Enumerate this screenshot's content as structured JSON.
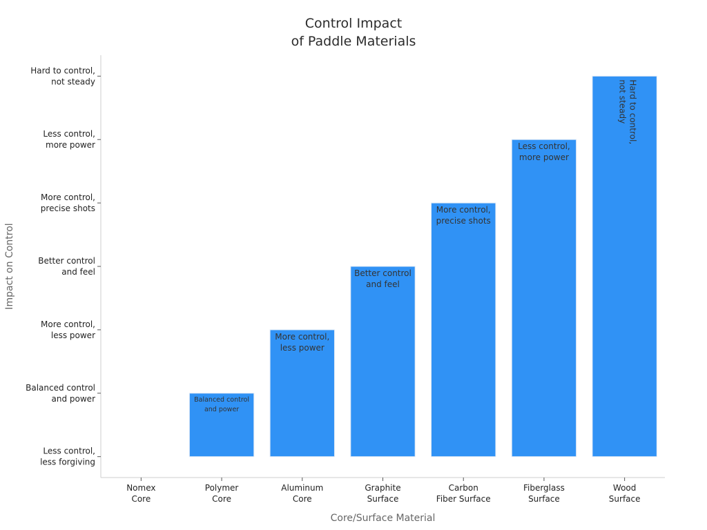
{
  "chart_data": {
    "type": "bar",
    "title": [
      "Control Impact",
      "of Paddle Materials"
    ],
    "xlabel": "Core/Surface Material",
    "ylabel": "Impact on Control",
    "categories": [
      [
        "Nomex",
        "Core"
      ],
      [
        "Polymer",
        "Core"
      ],
      [
        "Aluminum",
        "Core"
      ],
      [
        "Graphite",
        "Surface"
      ],
      [
        "Carbon",
        "Fiber Surface"
      ],
      [
        "Fiberglass",
        "Surface"
      ],
      [
        "Wood",
        "Surface"
      ]
    ],
    "y_ticks": [
      [
        "Less control,",
        "less forgiving"
      ],
      [
        "Balanced control",
        "and power"
      ],
      [
        "More control,",
        "less power"
      ],
      [
        "Better control",
        "and feel"
      ],
      [
        "More control,",
        "precise shots"
      ],
      [
        "Less control,",
        "more power"
      ],
      [
        "Hard to control,",
        "not steady"
      ]
    ],
    "values": [
      0,
      1,
      2,
      3,
      4,
      5,
      6
    ],
    "bar_labels": [
      [],
      [
        "Balanced control",
        "and power"
      ],
      [
        "More control,",
        "less power"
      ],
      [
        "Better control",
        "and feel"
      ],
      [
        "More control,",
        "precise shots"
      ],
      [
        "Less control,",
        "more power"
      ],
      [
        "Hard to control,",
        "not steady"
      ]
    ],
    "ylim": [
      -0.33,
      6.33
    ],
    "grid": false,
    "bar_color": "#3092f5"
  }
}
